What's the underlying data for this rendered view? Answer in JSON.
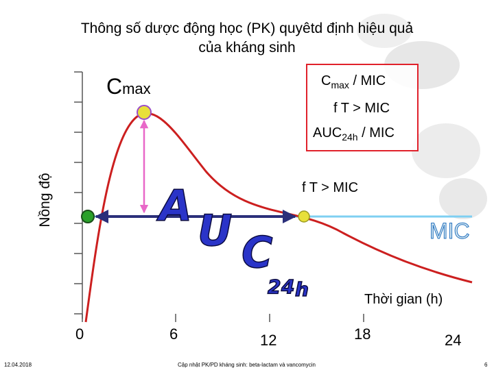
{
  "title": {
    "line1": "Thông số dược động học (PK) quyêtd định hiệu quả",
    "line2": "của kháng sinh"
  },
  "legend": {
    "item1_main": "C",
    "item1_sub": "max",
    "item1_tail": " / MIC",
    "item2": "f T > MIC",
    "item3_main": "AUC",
    "item3_sub": "24h",
    "item3_tail": " / MIC"
  },
  "cmax_label": {
    "main": "C",
    "sub": "max"
  },
  "ft_label": "f T > MIC",
  "mic_label": "MIC",
  "auc_letters": [
    "A",
    "U",
    "C"
  ],
  "auc_sub_letters": [
    "2",
    "4",
    "h"
  ],
  "xlabel": "Thời gian (h)",
  "ylabel": "Nồng độ",
  "xticks": [
    "0",
    "6",
    "12",
    "18",
    "24"
  ],
  "footer": {
    "date": "12.04.2018",
    "center": "Cập nhật PK/PD kháng sinh: beta-lactam và vancomycin",
    "page": "6"
  },
  "colors": {
    "curve": "#cc1f1f",
    "mic_line": "#7ecff2",
    "arrow_dark": "#2b2f7a",
    "cmax_arrow": "#e868c8",
    "green_dot": "#2aa02a",
    "yellow_dot": "#e8e03a",
    "legend_border": "#e0202a",
    "auc_fill": "#2a34c8"
  }
}
